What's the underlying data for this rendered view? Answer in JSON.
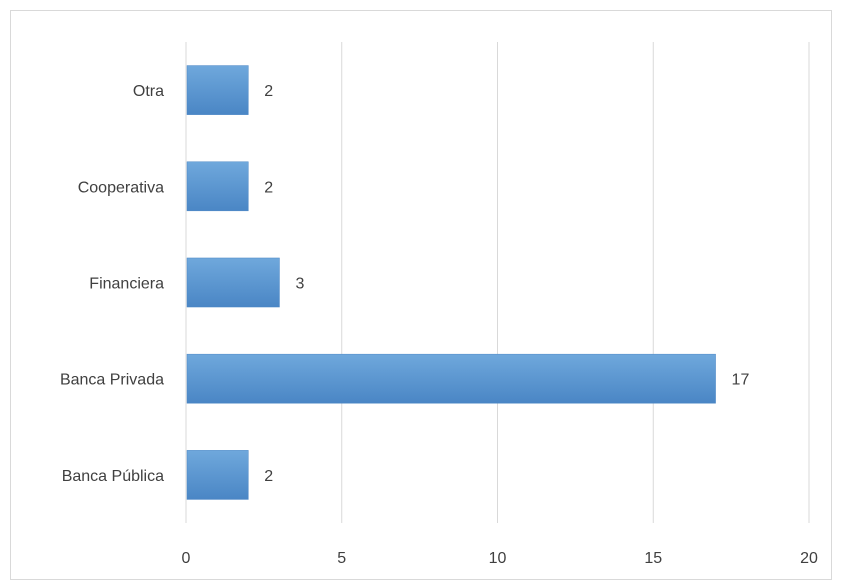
{
  "chart_data": {
    "type": "bar",
    "orientation": "horizontal",
    "categories": [
      "Banca Pública",
      "Banca Privada",
      "Financiera",
      "Cooperativa",
      "Otra"
    ],
    "values": [
      2,
      17,
      3,
      2,
      2
    ],
    "title": "",
    "xlabel": "",
    "ylabel": "",
    "xlim": [
      0,
      20
    ],
    "xticks": [
      "0",
      "5",
      "10",
      "15",
      "20"
    ],
    "grid": "vertical",
    "legend": "none",
    "data_labels": true,
    "colors": {
      "bar": "#5b9bd5",
      "bar_light": "#6fa8dc",
      "bar_dark": "#4a86c5",
      "grid": "#d9d9d9",
      "text": "#404040"
    }
  }
}
